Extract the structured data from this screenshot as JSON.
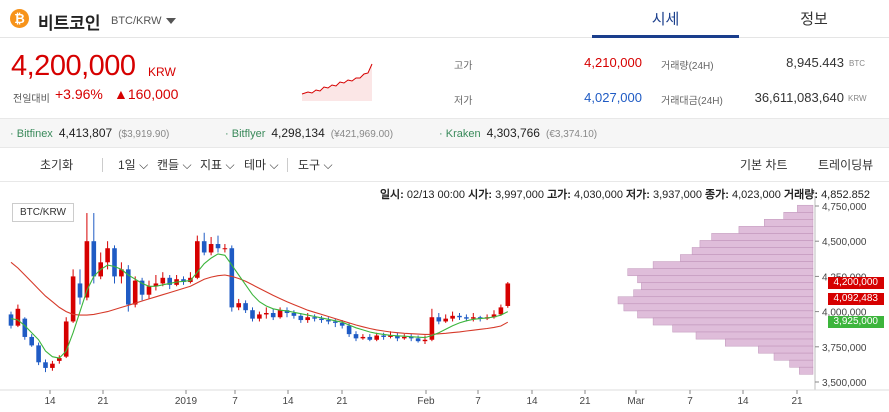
{
  "header": {
    "coin_name": "비트코인",
    "pair": "BTC/KRW",
    "tabs": [
      {
        "label": "시세"
      },
      {
        "label": "정보"
      }
    ]
  },
  "summary": {
    "price": "4,200,000",
    "unit": "KRW",
    "change_label": "전일대비",
    "change_pct": "+3.96%",
    "change_amt": "▲160,000"
  },
  "stats": {
    "high_label": "고가",
    "high": "4,210,000",
    "low_label": "저가",
    "low": "4,027,000",
    "volume_label": "거래량(24H)",
    "volume": "8,945.443",
    "volume_unit": "BTC",
    "value_label": "거래대금(24H)",
    "value": "36,611,083,640",
    "value_unit": "KRW"
  },
  "exchanges": [
    {
      "name": "Bitfinex",
      "price": "4,413,807",
      "sub": "($3,919.90)"
    },
    {
      "name": "Bitflyer",
      "price": "4,298,134",
      "sub": "(¥421,969.00)"
    },
    {
      "name": "Kraken",
      "price": "4,303,766",
      "sub": "(€3,374.10)"
    }
  ],
  "toolbar": {
    "reset": "초기화",
    "interval": "1일",
    "candle": "캔들",
    "indicator": "지표",
    "theme": "테마",
    "tools": "도구",
    "basic_chart": "기본 차트",
    "tradingview": "트레이딩뷰"
  },
  "ohlc": {
    "date_label": "일시:",
    "date": "02/13 00:00",
    "open_label": "시가:",
    "open": "3,997,000",
    "high_label": "고가:",
    "high": "4,030,000",
    "low_label": "저가:",
    "low": "3,937,000",
    "close_label": "종가:",
    "close": "4,023,000",
    "volume_label": "거래량:",
    "volume": "4,852.852"
  },
  "chart_data": {
    "type": "candlestick",
    "pair_label": "BTC/KRW",
    "x_ticks": [
      "14",
      "21",
      "2019",
      "7",
      "14",
      "21",
      "Feb",
      "7",
      "14",
      "21",
      "Mar",
      "7",
      "14",
      "21"
    ],
    "y_ticks": [
      "4,750,000",
      "4,500,000",
      "4,250,000",
      "4,000,000",
      "3,750,000",
      "3,500,000"
    ],
    "y_range": [
      3500000,
      4800000
    ],
    "price_tags": [
      {
        "label": "4,200,000",
        "color": "#d60000"
      },
      {
        "label": "4,092,483",
        "color": "#d60000"
      },
      {
        "label": "3,925,000",
        "color": "#3cb53c"
      }
    ],
    "candle_colors": {
      "up": "#d60000",
      "down": "#1f5bc4"
    },
    "ma_colors": {
      "short": "#d63a2a",
      "long": "#3cb53c"
    },
    "volume_profile_color": "#dcb6d6",
    "candles": [
      [
        3980000,
        3900000,
        4000000,
        3880000
      ],
      [
        3900000,
        4020000,
        4050000,
        3890000
      ],
      [
        3950000,
        3820000,
        3960000,
        3800000
      ],
      [
        3820000,
        3760000,
        3840000,
        3750000
      ],
      [
        3760000,
        3640000,
        3780000,
        3620000
      ],
      [
        3640000,
        3600000,
        3660000,
        3570000
      ],
      [
        3600000,
        3630000,
        3650000,
        3580000
      ],
      [
        3650000,
        3670000,
        3690000,
        3630000
      ],
      [
        3680000,
        3930000,
        3960000,
        3670000
      ],
      [
        3930000,
        4250000,
        4300000,
        3920000
      ],
      [
        4200000,
        4100000,
        4300000,
        4050000
      ],
      [
        4100000,
        4500000,
        4700000,
        4080000
      ],
      [
        4500000,
        4250000,
        4700000,
        4200000
      ],
      [
        4250000,
        4350000,
        4420000,
        4230000
      ],
      [
        4350000,
        4450000,
        4500000,
        4300000
      ],
      [
        4450000,
        4250000,
        4470000,
        4200000
      ],
      [
        4250000,
        4300000,
        4350000,
        4200000
      ],
      [
        4300000,
        4050000,
        4330000,
        4000000
      ],
      [
        4050000,
        4220000,
        4250000,
        4030000
      ],
      [
        4220000,
        4120000,
        4240000,
        4080000
      ],
      [
        4120000,
        4180000,
        4220000,
        4090000
      ],
      [
        4180000,
        4200000,
        4260000,
        4150000
      ],
      [
        4200000,
        4240000,
        4280000,
        4180000
      ],
      [
        4240000,
        4190000,
        4260000,
        4160000
      ],
      [
        4190000,
        4230000,
        4260000,
        4180000
      ],
      [
        4230000,
        4210000,
        4250000,
        4190000
      ],
      [
        4210000,
        4240000,
        4280000,
        4200000
      ],
      [
        4240000,
        4500000,
        4540000,
        4230000
      ],
      [
        4500000,
        4420000,
        4560000,
        4400000
      ],
      [
        4420000,
        4480000,
        4530000,
        4400000
      ],
      [
        4480000,
        4450000,
        4540000,
        4420000
      ],
      [
        4450000,
        4450000,
        4480000,
        4420000
      ],
      [
        4450000,
        4030000,
        4470000,
        4000000
      ],
      [
        4030000,
        4060000,
        4090000,
        4010000
      ],
      [
        4060000,
        4010000,
        4080000,
        3990000
      ],
      [
        4010000,
        3950000,
        4030000,
        3930000
      ],
      [
        3950000,
        3980000,
        4000000,
        3930000
      ],
      [
        3980000,
        3990000,
        4030000,
        3950000
      ],
      [
        3990000,
        3960000,
        4020000,
        3940000
      ],
      [
        3960000,
        4010000,
        4030000,
        3950000
      ],
      [
        4010000,
        3990000,
        4030000,
        3960000
      ],
      [
        3990000,
        3970000,
        4010000,
        3950000
      ],
      [
        3970000,
        3940000,
        3990000,
        3920000
      ],
      [
        3940000,
        3960000,
        3990000,
        3920000
      ],
      [
        3960000,
        3950000,
        3980000,
        3930000
      ],
      [
        3950000,
        3940000,
        3970000,
        3920000
      ],
      [
        3940000,
        3930000,
        3960000,
        3910000
      ],
      [
        3930000,
        3920000,
        3950000,
        3890000
      ],
      [
        3920000,
        3900000,
        3940000,
        3880000
      ],
      [
        3900000,
        3840000,
        3920000,
        3820000
      ],
      [
        3840000,
        3810000,
        3860000,
        3790000
      ],
      [
        3810000,
        3820000,
        3840000,
        3800000
      ],
      [
        3820000,
        3800000,
        3840000,
        3790000
      ],
      [
        3800000,
        3830000,
        3850000,
        3790000
      ],
      [
        3830000,
        3820000,
        3850000,
        3800000
      ],
      [
        3820000,
        3830000,
        3860000,
        3810000
      ],
      [
        3830000,
        3810000,
        3850000,
        3790000
      ],
      [
        3810000,
        3820000,
        3840000,
        3800000
      ],
      [
        3820000,
        3810000,
        3840000,
        3790000
      ],
      [
        3810000,
        3790000,
        3830000,
        3780000
      ],
      [
        3790000,
        3800000,
        3830000,
        3770000
      ],
      [
        3800000,
        3960000,
        4020000,
        3790000
      ],
      [
        3960000,
        3930000,
        3990000,
        3910000
      ],
      [
        3930000,
        3950000,
        3980000,
        3920000
      ],
      [
        3950000,
        3970000,
        4000000,
        3930000
      ],
      [
        3970000,
        3960000,
        3990000,
        3940000
      ],
      [
        3960000,
        3950000,
        3980000,
        3930000
      ],
      [
        3950000,
        3960000,
        3990000,
        3930000
      ],
      [
        3960000,
        3950000,
        3970000,
        3930000
      ],
      [
        3950000,
        3960000,
        3980000,
        3940000
      ],
      [
        3960000,
        3980000,
        4010000,
        3950000
      ],
      [
        3980000,
        4030000,
        4050000,
        3970000
      ],
      [
        4040000,
        4200000,
        4210000,
        4027000
      ]
    ],
    "ma_short": [
      3950000,
      3940000,
      3900000,
      3850000,
      3800000,
      3720000,
      3680000,
      3670000,
      3720000,
      3850000,
      4000000,
      4150000,
      4250000,
      4300000,
      4330000,
      4320000,
      4300000,
      4260000,
      4230000,
      4200000,
      4180000,
      4180000,
      4190000,
      4200000,
      4210000,
      4215000,
      4220000,
      4280000,
      4340000,
      4380000,
      4410000,
      4400000,
      4330000,
      4260000,
      4190000,
      4120000,
      4070000,
      4040000,
      4020000,
      4010000,
      4005000,
      3995000,
      3985000,
      3975000,
      3965000,
      3955000,
      3945000,
      3935000,
      3925000,
      3905000,
      3885000,
      3870000,
      3855000,
      3845000,
      3838000,
      3832000,
      3828000,
      3825000,
      3822000,
      3818000,
      3815000,
      3830000,
      3850000,
      3875000,
      3900000,
      3920000,
      3935000,
      3945000,
      3950000,
      3955000,
      3962000,
      3975000,
      4000000
    ],
    "ma_long": [
      4350000,
      4310000,
      4260000,
      4210000,
      4160000,
      4110000,
      4070000,
      4030000,
      4000000,
      3980000,
      3975000,
      3975000,
      3980000,
      3990000,
      4000000,
      4015000,
      4030000,
      4045000,
      4060000,
      4075000,
      4090000,
      4105000,
      4120000,
      4135000,
      4150000,
      4165000,
      4180000,
      4205000,
      4230000,
      4245000,
      4255000,
      4260000,
      4250000,
      4235000,
      4215000,
      4190000,
      4165000,
      4140000,
      4115000,
      4092000,
      4070000,
      4050000,
      4030000,
      4010000,
      3995000,
      3980000,
      3965000,
      3950000,
      3935000,
      3920000,
      3905000,
      3892000,
      3880000,
      3870000,
      3862000,
      3855000,
      3850000,
      3846000,
      3843000,
      3840000,
      3838000,
      3839000,
      3842000,
      3846000,
      3851000,
      3856000,
      3862000,
      3868000,
      3874000,
      3880000,
      3888000,
      3898000,
      3925000
    ],
    "volume_profile": [
      {
        "price": 4730000,
        "weight": 0.08
      },
      {
        "price": 4680000,
        "weight": 0.15
      },
      {
        "price": 4630000,
        "weight": 0.25
      },
      {
        "price": 4580000,
        "weight": 0.38
      },
      {
        "price": 4530000,
        "weight": 0.52
      },
      {
        "price": 4480000,
        "weight": 0.58
      },
      {
        "price": 4430000,
        "weight": 0.62
      },
      {
        "price": 4380000,
        "weight": 0.68
      },
      {
        "price": 4330000,
        "weight": 0.82
      },
      {
        "price": 4280000,
        "weight": 0.95
      },
      {
        "price": 4230000,
        "weight": 0.9
      },
      {
        "price": 4180000,
        "weight": 0.88
      },
      {
        "price": 4130000,
        "weight": 0.92
      },
      {
        "price": 4080000,
        "weight": 1.0
      },
      {
        "price": 4030000,
        "weight": 0.97
      },
      {
        "price": 3980000,
        "weight": 0.9
      },
      {
        "price": 3930000,
        "weight": 0.82
      },
      {
        "price": 3880000,
        "weight": 0.72
      },
      {
        "price": 3830000,
        "weight": 0.6
      },
      {
        "price": 3780000,
        "weight": 0.45
      },
      {
        "price": 3730000,
        "weight": 0.28
      },
      {
        "price": 3680000,
        "weight": 0.2
      },
      {
        "price": 3630000,
        "weight": 0.12
      },
      {
        "price": 3580000,
        "weight": 0.07
      }
    ]
  }
}
